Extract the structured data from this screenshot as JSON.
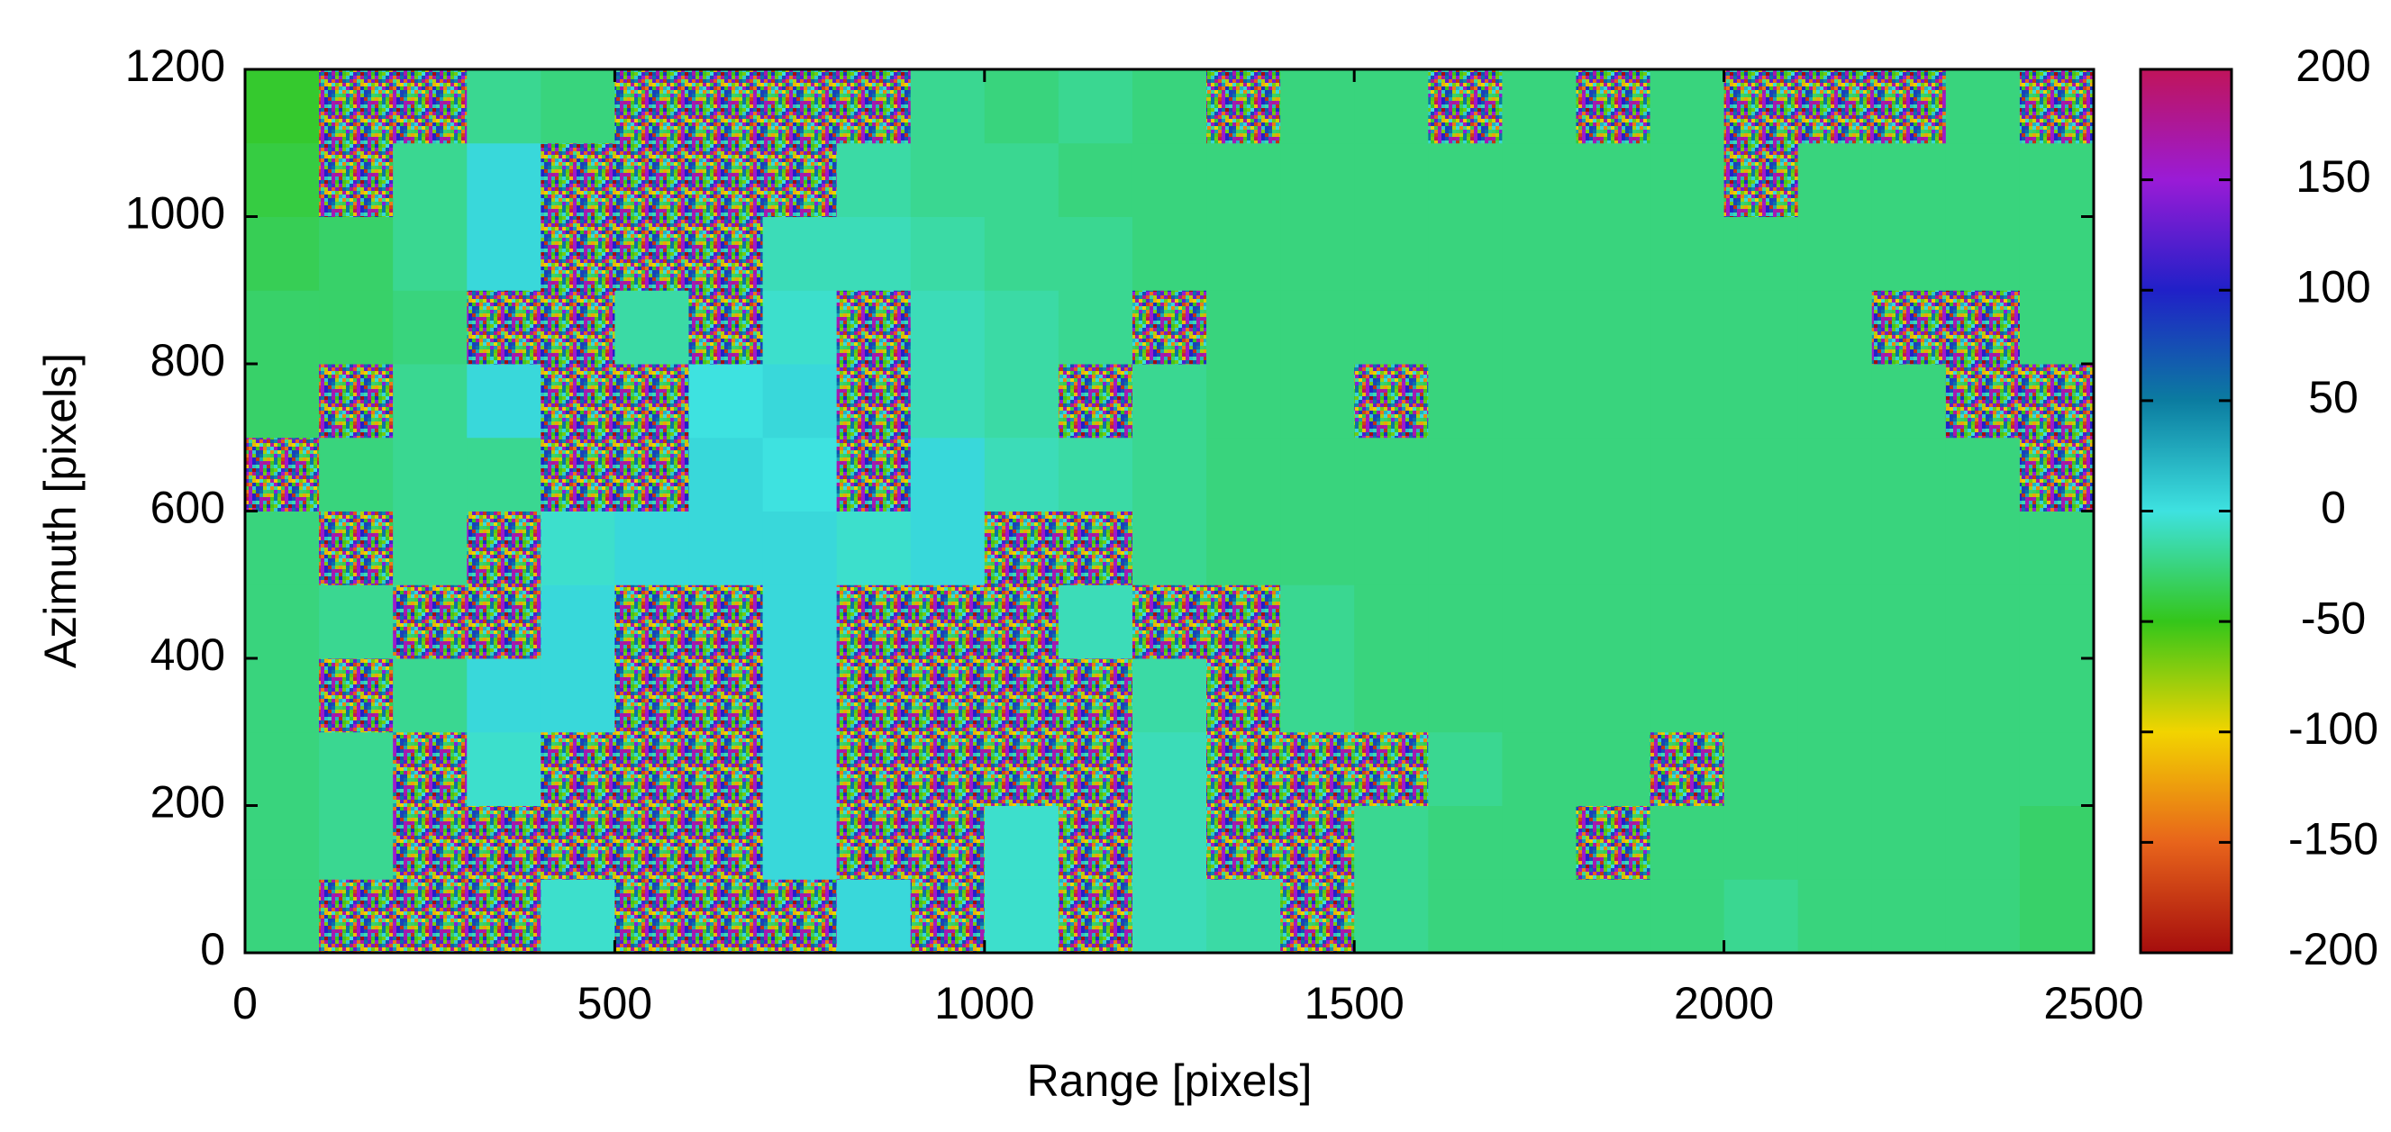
{
  "chart_data": {
    "type": "heatmap",
    "xlabel": "Range [pixels]",
    "ylabel": "Azimuth [pixels]",
    "xlim": [
      0,
      2500
    ],
    "ylim": [
      0,
      1200
    ],
    "xticks": [
      0,
      500,
      1000,
      1500,
      2000,
      2500
    ],
    "yticks": [
      0,
      200,
      400,
      600,
      800,
      1000,
      1200
    ],
    "zlim": [
      -200,
      200
    ],
    "zticks": [
      -200,
      -150,
      -100,
      -50,
      0,
      50,
      100,
      150,
      200
    ],
    "colormap": [
      "#a50d0d",
      "#e8641b",
      "#f2d400",
      "#34c61a",
      "#3ee2e0",
      "#0b7ca0",
      "#2020c8",
      "#9a1bd6",
      "#c0145a"
    ],
    "z": [
      [
        -25,
        null,
        null,
        null,
        -5,
        null,
        null,
        null,
        5,
        null,
        -5,
        null,
        -10,
        -15,
        null,
        -20,
        -25,
        -25,
        -25,
        -25,
        -20,
        -25,
        -25,
        -25,
        -30
      ],
      [
        -25,
        -20,
        null,
        null,
        null,
        null,
        null,
        5,
        null,
        null,
        -5,
        null,
        -10,
        null,
        null,
        -20,
        -25,
        -25,
        null,
        -25,
        -25,
        -25,
        -25,
        -25,
        -30
      ],
      [
        -25,
        -20,
        null,
        -5,
        null,
        null,
        null,
        5,
        null,
        null,
        null,
        null,
        -10,
        null,
        null,
        null,
        -20,
        -25,
        -25,
        null,
        -25,
        -25,
        -25,
        -25,
        -25
      ],
      [
        -25,
        null,
        -20,
        5,
        5,
        null,
        null,
        5,
        null,
        null,
        null,
        null,
        -15,
        null,
        -20,
        -25,
        -25,
        -25,
        -25,
        -25,
        -25,
        -25,
        -25,
        -25,
        -25
      ],
      [
        -25,
        -20,
        null,
        null,
        5,
        null,
        null,
        5,
        null,
        null,
        null,
        -10,
        null,
        null,
        -20,
        -25,
        -25,
        -25,
        -25,
        -25,
        -25,
        -25,
        -25,
        -25,
        -25
      ],
      [
        -25,
        null,
        -20,
        null,
        -5,
        5,
        5,
        5,
        -5,
        5,
        null,
        null,
        -20,
        -25,
        -25,
        -25,
        -25,
        -25,
        -25,
        -25,
        -25,
        -25,
        -25,
        -25,
        -25
      ],
      [
        null,
        -25,
        -20,
        -20,
        null,
        null,
        5,
        0,
        null,
        5,
        -10,
        -15,
        -20,
        -25,
        -25,
        -25,
        -25,
        -25,
        -25,
        -25,
        -25,
        -25,
        -25,
        -25,
        null
      ],
      [
        -30,
        null,
        -20,
        5,
        null,
        null,
        0,
        5,
        null,
        -10,
        -15,
        null,
        -20,
        -25,
        -25,
        null,
        -25,
        -25,
        -25,
        -25,
        -25,
        -25,
        -25,
        null,
        null
      ],
      [
        -30,
        -30,
        -25,
        null,
        null,
        -15,
        null,
        -5,
        null,
        -10,
        -15,
        -20,
        null,
        -25,
        -25,
        -25,
        -25,
        -25,
        -25,
        -25,
        -25,
        -25,
        null,
        null,
        -25
      ],
      [
        -35,
        -30,
        -20,
        5,
        null,
        null,
        null,
        -10,
        -10,
        -15,
        -20,
        -20,
        -25,
        -25,
        -25,
        -25,
        -25,
        -25,
        -25,
        -25,
        -25,
        -25,
        -25,
        -25,
        -25
      ],
      [
        -40,
        null,
        -20,
        5,
        null,
        null,
        null,
        null,
        -15,
        -20,
        -20,
        -25,
        -25,
        -25,
        -25,
        -25,
        -25,
        -25,
        -25,
        -25,
        null,
        -25,
        -25,
        -25,
        -25
      ],
      [
        -45,
        null,
        null,
        -20,
        -25,
        null,
        null,
        null,
        null,
        -20,
        -25,
        -20,
        -25,
        null,
        -25,
        -25,
        null,
        -25,
        null,
        -25,
        null,
        null,
        null,
        -25,
        null
      ]
    ]
  }
}
